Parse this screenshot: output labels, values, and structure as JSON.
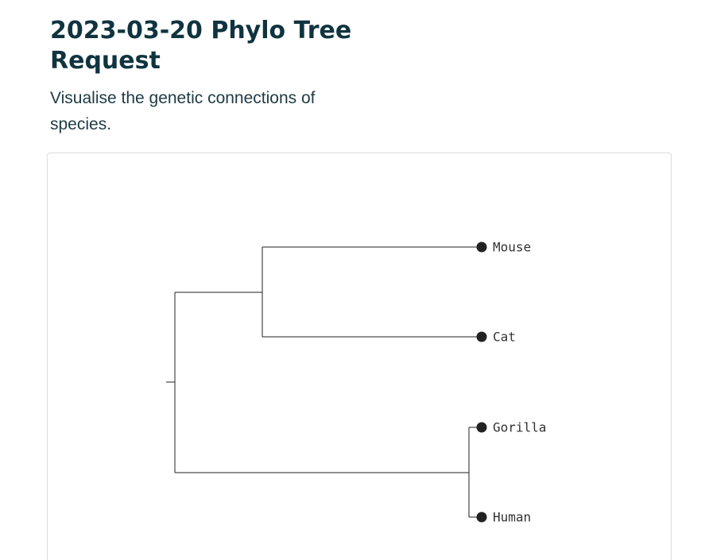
{
  "header": {
    "title": "2023-03-20 Phylo Tree Request",
    "subtitle": "Visualise the genetic connections of species."
  },
  "tree": {
    "leaves": [
      "Mouse",
      "Cat",
      "Gorilla",
      "Human"
    ],
    "clades": [
      {
        "leaves": [
          "Mouse",
          "Cat"
        ]
      },
      {
        "leaves": [
          "Gorilla",
          "Human"
        ]
      }
    ]
  }
}
